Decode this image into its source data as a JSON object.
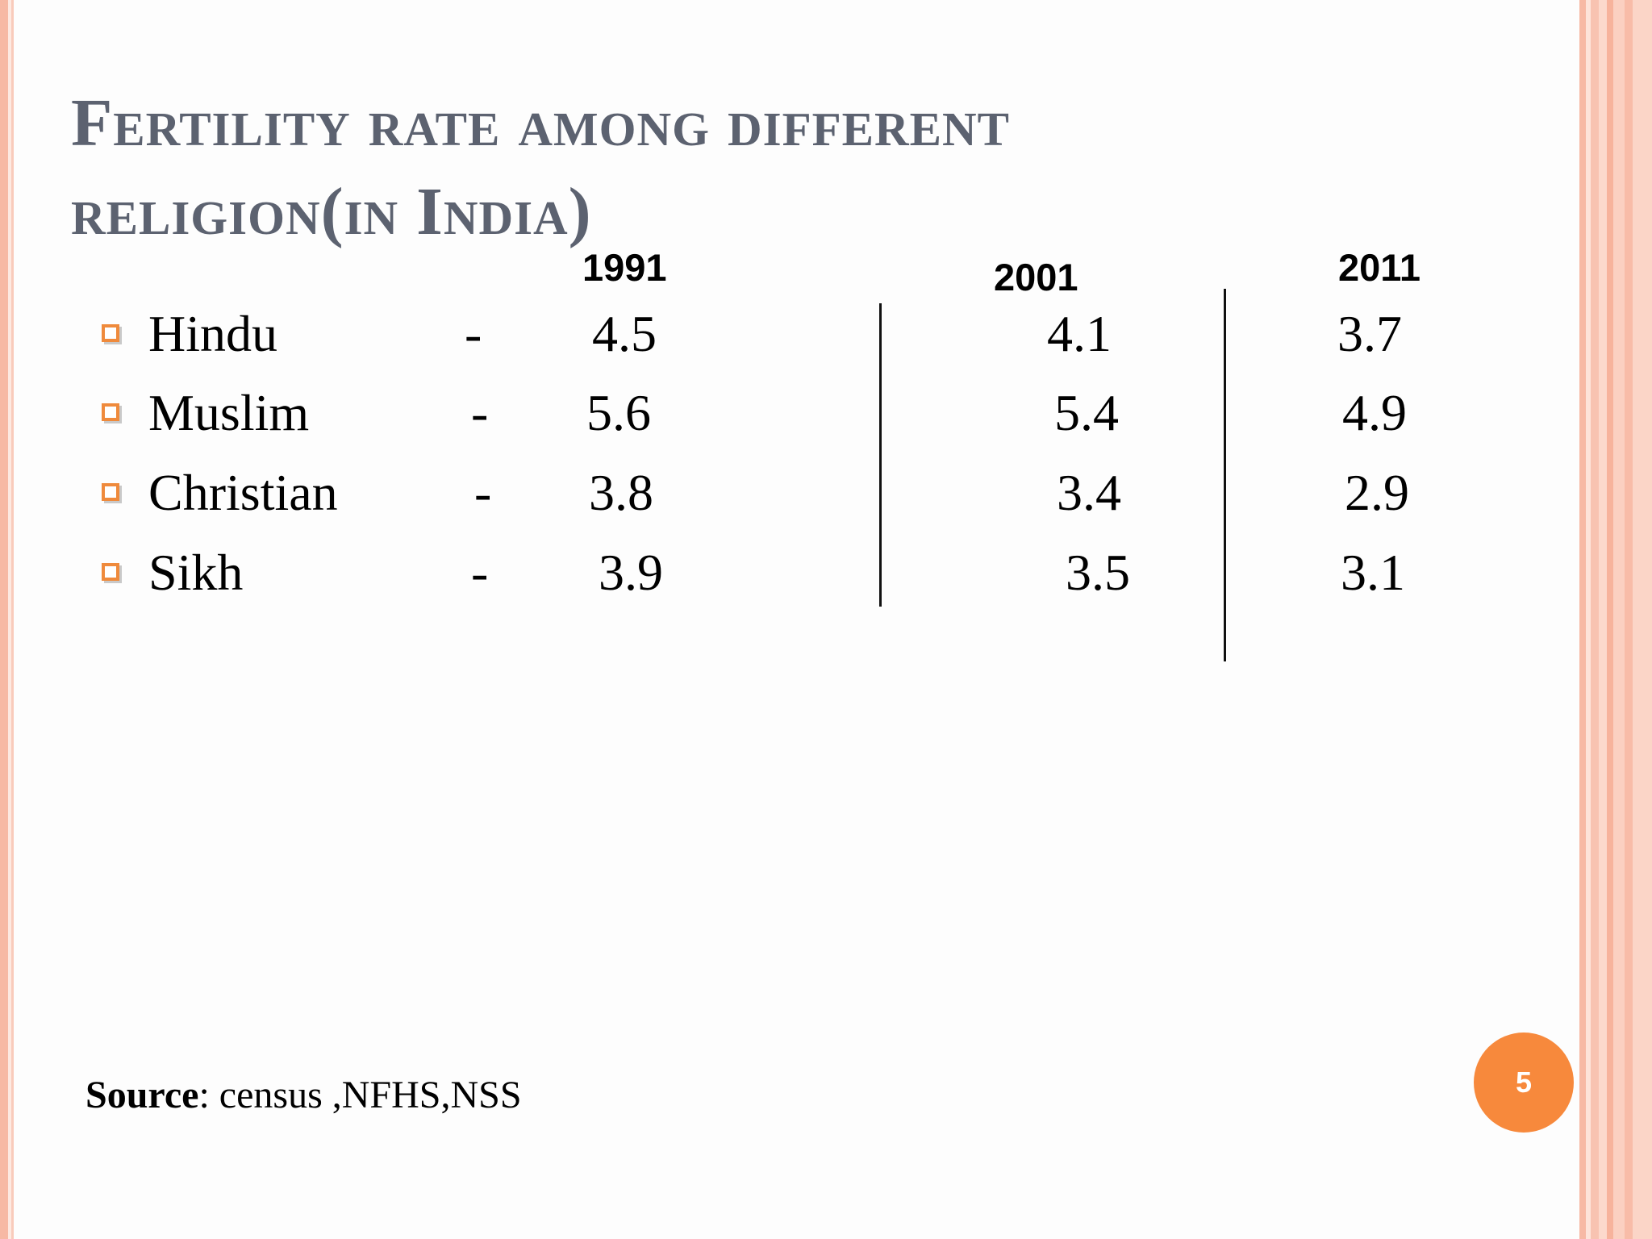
{
  "slide": {
    "title": "Fertility rate among different religion(in India)",
    "table": {
      "years": [
        "1991",
        "2001",
        "2011"
      ],
      "rows": [
        {
          "religion": "Hindu",
          "dash": "-",
          "values": [
            "4.5",
            "4.1",
            "3.7"
          ]
        },
        {
          "religion": "Muslim",
          "dash": "-",
          "values": [
            "5.6",
            "5.4",
            "4.9"
          ]
        },
        {
          "religion": "Christian",
          "dash": "-",
          "values": [
            "3.8",
            "3.4",
            "2.9"
          ]
        },
        {
          "religion": "Sikh",
          "dash": "-",
          "values": [
            "3.9",
            "3.5",
            "3.1"
          ]
        }
      ]
    },
    "source_label": "Source",
    "source_text": ": census ,NFHS,NSS",
    "page_number": "5"
  },
  "colors": {
    "title": "#5c6270",
    "accent": "#f7893c",
    "bullet": "#ef8a3c",
    "border": "#f7b9a4"
  }
}
